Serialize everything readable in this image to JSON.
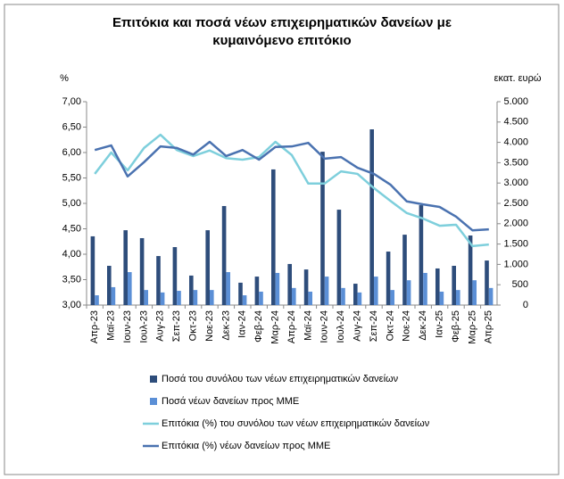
{
  "chart_data": {
    "type": "combo",
    "title": "Επιτόκια και ποσά νέων επιχειρηματικών δανείων με κυμαινόμενο επιτόκιο",
    "y_label": "%",
    "y2_label": "εκατ. ευρώ",
    "categories": [
      "Απρ-23",
      "Μαϊ-23",
      "Ιουν-23",
      "Ιουλ-23",
      "Αυγ-23",
      "Σεπ-23",
      "Οκτ-23",
      "Νοε-23",
      "Δεκ-23",
      "Ιαν-24",
      "Φεβ-24",
      "Μαρ-24",
      "Απρ-24",
      "Μαϊ-24",
      "Ιουν-24",
      "Ιουλ-24",
      "Αυγ-24",
      "Σεπ-24",
      "Οκτ-24",
      "Νοε-24",
      "Δεκ-24",
      "Ιαν-25",
      "Φεβ-25",
      "Μαρ-25",
      "Απρ-25"
    ],
    "ylim": [
      3,
      7
    ],
    "yticks": [
      {
        "value": 3,
        "label": "3,00"
      },
      {
        "value": 3.5,
        "label": "3,50"
      },
      {
        "value": 4,
        "label": "4,00"
      },
      {
        "value": 4.5,
        "label": "4,50"
      },
      {
        "value": 5,
        "label": "5,00"
      },
      {
        "value": 5.5,
        "label": "5,50"
      },
      {
        "value": 6,
        "label": "6,00"
      },
      {
        "value": 6.5,
        "label": "6,50"
      },
      {
        "value": 7,
        "label": "7,00"
      }
    ],
    "y2lim": [
      0,
      5000
    ],
    "y2ticks": [
      0,
      500,
      {
        "value": 1000,
        "label": "1.000"
      },
      {
        "value": 1500,
        "label": "1.500"
      },
      {
        "value": 2000,
        "label": "2.000"
      },
      {
        "value": 2500,
        "label": "2.500"
      },
      {
        "value": 3000,
        "label": "3.000"
      },
      {
        "value": 3500,
        "label": "3.500"
      },
      {
        "value": 4000,
        "label": "4.000"
      },
      {
        "value": 4500,
        "label": "4.500"
      },
      {
        "value": 5000,
        "label": "5.000"
      }
    ],
    "grid": false,
    "legend": "bottom",
    "series": [
      {
        "name": "Ποσά του συνόλου των νέων επιχειρηματικών δανείων",
        "type": "bar",
        "axis": "y2",
        "color": "#2e4d7b",
        "values": [
          1690,
          965,
          1840,
          1645,
          1205,
          1425,
          725,
          1840,
          2435,
          550,
          700,
          3335,
          1010,
          875,
          3770,
          2345,
          525,
          4320,
          1315,
          1730,
          2455,
          900,
          965,
          1710,
          1095
        ]
      },
      {
        "name": "Ποσά νέων δανείων προς ΜΜΕ",
        "type": "bar",
        "axis": "y2",
        "color": "#5b8fd6",
        "values": [
          240,
          440,
          810,
          370,
          310,
          350,
          370,
          370,
          810,
          240,
          330,
          790,
          420,
          330,
          700,
          420,
          310,
          700,
          370,
          610,
          790,
          330,
          370,
          610,
          420
        ]
      },
      {
        "name": "Επιτόκια (%) του συνόλου των νέων επιχειρηματικών δανείων",
        "type": "line",
        "color": "#7ecfdc",
        "values": [
          5.58,
          6.0,
          5.65,
          6.09,
          6.35,
          6.05,
          5.93,
          6.04,
          5.89,
          5.86,
          5.91,
          6.21,
          5.95,
          5.39,
          5.39,
          5.63,
          5.58,
          5.3,
          5.05,
          4.81,
          4.7,
          4.56,
          4.58,
          4.16,
          4.19
        ]
      },
      {
        "name": "Επιτόκια (%) νέων δανείων προς ΜΜΕ",
        "type": "line",
        "color": "#4a72b0",
        "values": [
          6.05,
          6.14,
          5.53,
          5.81,
          6.12,
          6.09,
          5.96,
          6.21,
          5.93,
          6.05,
          5.86,
          6.11,
          6.12,
          6.19,
          5.88,
          5.91,
          5.7,
          5.58,
          5.37,
          5.04,
          4.98,
          4.93,
          4.74,
          4.47,
          4.49
        ]
      }
    ]
  }
}
